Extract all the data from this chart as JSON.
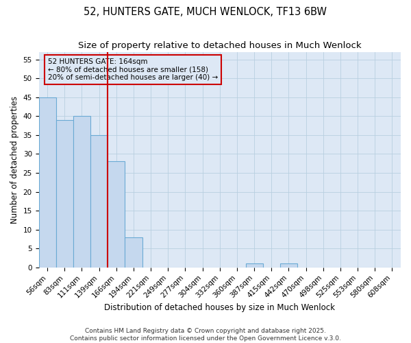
{
  "title": "52, HUNTERS GATE, MUCH WENLOCK, TF13 6BW",
  "subtitle": "Size of property relative to detached houses in Much Wenlock",
  "xlabel": "Distribution of detached houses by size in Much Wenlock",
  "ylabel": "Number of detached properties",
  "bin_labels": [
    "56sqm",
    "83sqm",
    "111sqm",
    "139sqm",
    "166sqm",
    "194sqm",
    "221sqm",
    "249sqm",
    "277sqm",
    "304sqm",
    "332sqm",
    "360sqm",
    "387sqm",
    "415sqm",
    "442sqm",
    "470sqm",
    "498sqm",
    "525sqm",
    "553sqm",
    "580sqm",
    "608sqm"
  ],
  "bar_values": [
    45,
    39,
    40,
    35,
    28,
    8,
    0,
    0,
    0,
    0,
    0,
    0,
    1,
    0,
    1,
    0,
    0,
    0,
    0,
    0,
    0
  ],
  "bar_color": "#c5d8ee",
  "bar_edge_color": "#6aaad4",
  "vline_x": 3.5,
  "vline_color": "#cc0000",
  "annotation_text": "52 HUNTERS GATE: 164sqm\n← 80% of detached houses are smaller (158)\n20% of semi-detached houses are larger (40) →",
  "annotation_box_color": "#cc0000",
  "ylim": [
    0,
    57
  ],
  "yticks": [
    0,
    5,
    10,
    15,
    20,
    25,
    30,
    35,
    40,
    45,
    50,
    55
  ],
  "axes_bg_color": "#dde8f5",
  "fig_bg_color": "#ffffff",
  "grid_color": "#b8cfe0",
  "footer": "Contains HM Land Registry data © Crown copyright and database right 2025.\nContains public sector information licensed under the Open Government Licence v.3.0.",
  "title_fontsize": 10.5,
  "subtitle_fontsize": 9.5,
  "tick_fontsize": 7.5,
  "label_fontsize": 8.5,
  "footer_fontsize": 6.5
}
